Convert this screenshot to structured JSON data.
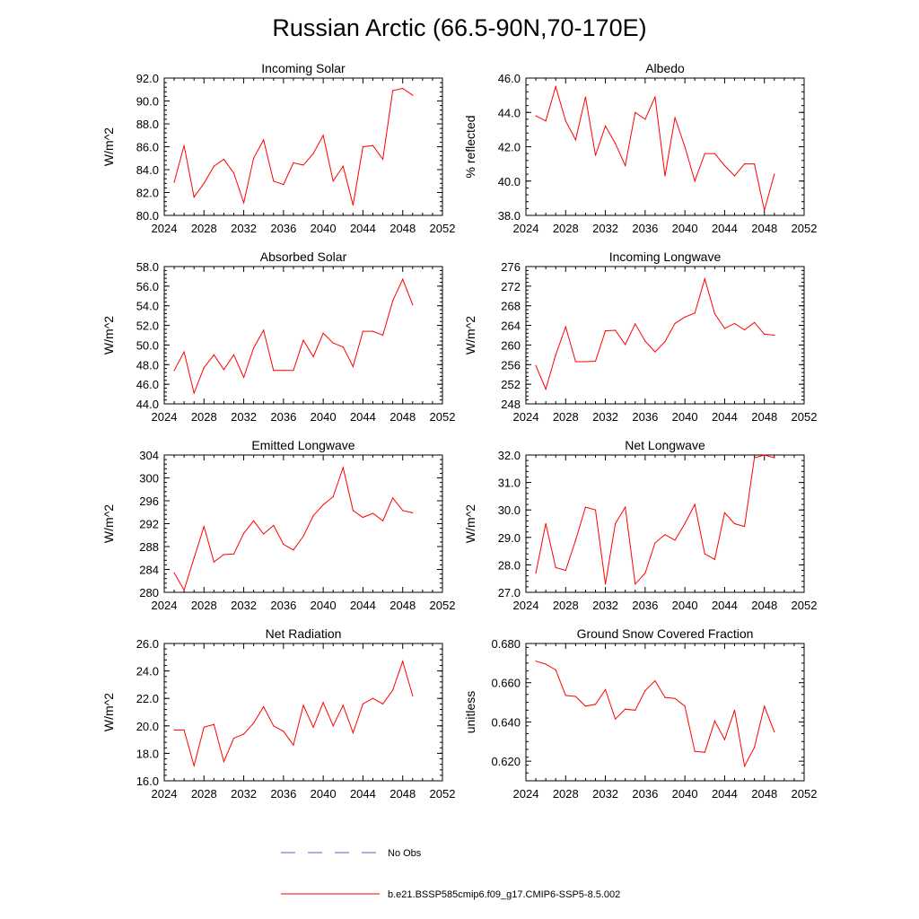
{
  "figure": {
    "title": "Russian Arctic (66.5-90N,70-170E)",
    "line_color": "#ff0000",
    "obs_color": "#5b5bbf"
  },
  "legend": {
    "obs_label": "No Obs",
    "model_label": "b.e21.BSSP585cmip6.f09_g17.CMIP6-SSP5-8.5.002"
  },
  "chart_data": [
    {
      "type": "line",
      "title": "Incoming Solar",
      "ylabel": "W/m^2",
      "xlim": [
        2024,
        2052
      ],
      "ylim": [
        80,
        92
      ],
      "xticks": [
        "2024",
        "2028",
        "2032",
        "2036",
        "2040",
        "2044",
        "2048",
        "2052"
      ],
      "yticks": [
        "80.0",
        "82.0",
        "84.0",
        "86.0",
        "88.0",
        "90.0",
        "92.0"
      ],
      "x": [
        2025,
        2026,
        2027,
        2028,
        2029,
        2030,
        2031,
        2032,
        2033,
        2034,
        2035,
        2036,
        2037,
        2038,
        2039,
        2040,
        2041,
        2042,
        2043,
        2044,
        2045,
        2046,
        2047,
        2048,
        2049
      ],
      "values": [
        82.9,
        86.1,
        81.6,
        82.8,
        84.3,
        84.9,
        83.7,
        81.1,
        85.0,
        86.6,
        83.0,
        82.7,
        84.6,
        84.4,
        85.4,
        87.0,
        83.0,
        84.3,
        80.9,
        86.0,
        86.1,
        84.9,
        90.9,
        91.1,
        90.5
      ]
    },
    {
      "type": "line",
      "title": "Albedo",
      "ylabel": "% reflected",
      "xlim": [
        2024,
        2052
      ],
      "ylim": [
        38,
        46
      ],
      "xticks": [
        "2024",
        "2028",
        "2032",
        "2036",
        "2040",
        "2044",
        "2048",
        "2052"
      ],
      "yticks": [
        "38.0",
        "40.0",
        "42.0",
        "44.0",
        "46.0"
      ],
      "x": [
        2025,
        2026,
        2027,
        2028,
        2029,
        2030,
        2031,
        2032,
        2033,
        2034,
        2035,
        2036,
        2037,
        2038,
        2039,
        2040,
        2041,
        2042,
        2043,
        2044,
        2045,
        2046,
        2047,
        2048,
        2049
      ],
      "values": [
        43.8,
        43.5,
        45.5,
        43.5,
        42.4,
        44.9,
        41.5,
        43.2,
        42.2,
        40.9,
        44.0,
        43.6,
        44.9,
        40.3,
        43.7,
        42.0,
        40.0,
        41.6,
        41.6,
        40.9,
        40.3,
        41.0,
        41.0,
        38.3,
        40.4
      ]
    },
    {
      "type": "line",
      "title": "Absorbed Solar",
      "ylabel": "W/m^2",
      "xlim": [
        2024,
        2052
      ],
      "ylim": [
        44,
        58
      ],
      "xticks": [
        "2024",
        "2028",
        "2032",
        "2036",
        "2040",
        "2044",
        "2048",
        "2052"
      ],
      "yticks": [
        "44.0",
        "46.0",
        "48.0",
        "50.0",
        "52.0",
        "54.0",
        "56.0",
        "58.0"
      ],
      "x": [
        2025,
        2026,
        2027,
        2028,
        2029,
        2030,
        2031,
        2032,
        2033,
        2034,
        2035,
        2036,
        2037,
        2038,
        2039,
        2040,
        2041,
        2042,
        2043,
        2044,
        2045,
        2046,
        2047,
        2048,
        2049
      ],
      "values": [
        47.4,
        49.3,
        45.1,
        47.7,
        49.0,
        47.5,
        49.0,
        46.7,
        49.7,
        51.5,
        47.4,
        47.4,
        47.4,
        50.5,
        48.8,
        51.2,
        50.2,
        49.8,
        47.8,
        51.4,
        51.4,
        51.0,
        54.5,
        56.7,
        54.1
      ]
    },
    {
      "type": "line",
      "title": "Incoming Longwave",
      "ylabel": "W/m^2",
      "xlim": [
        2024,
        2052
      ],
      "ylim": [
        248,
        276
      ],
      "xticks": [
        "2024",
        "2028",
        "2032",
        "2036",
        "2040",
        "2044",
        "2048",
        "2052"
      ],
      "yticks": [
        "248",
        "252",
        "256",
        "260",
        "264",
        "268",
        "272",
        "276"
      ],
      "x": [
        2025,
        2026,
        2027,
        2028,
        2029,
        2030,
        2031,
        2032,
        2033,
        2034,
        2035,
        2036,
        2037,
        2038,
        2039,
        2040,
        2041,
        2042,
        2043,
        2044,
        2045,
        2046,
        2047,
        2048,
        2049
      ],
      "values": [
        255.8,
        251.0,
        258.0,
        263.7,
        256.6,
        256.6,
        256.7,
        262.9,
        263.0,
        260.1,
        264.3,
        260.8,
        258.6,
        260.7,
        264.4,
        265.7,
        266.5,
        273.5,
        266.4,
        263.4,
        264.4,
        263.1,
        264.6,
        262.2,
        262.0
      ]
    },
    {
      "type": "line",
      "title": "Emitted Longwave",
      "ylabel": "W/m^2",
      "xlim": [
        2024,
        2052
      ],
      "ylim": [
        280,
        304
      ],
      "xticks": [
        "2024",
        "2028",
        "2032",
        "2036",
        "2040",
        "2044",
        "2048",
        "2052"
      ],
      "yticks": [
        "280",
        "284",
        "288",
        "292",
        "296",
        "300",
        "304"
      ],
      "x": [
        2025,
        2026,
        2027,
        2028,
        2029,
        2030,
        2031,
        2032,
        2033,
        2034,
        2035,
        2036,
        2037,
        2038,
        2039,
        2040,
        2041,
        2042,
        2043,
        2044,
        2045,
        2046,
        2047,
        2048,
        2049
      ],
      "values": [
        283.4,
        280.4,
        286.0,
        291.5,
        285.3,
        286.6,
        286.7,
        290.3,
        292.5,
        290.2,
        291.7,
        288.4,
        287.4,
        289.8,
        293.4,
        295.3,
        296.7,
        301.8,
        294.3,
        293.1,
        293.8,
        292.5,
        296.5,
        294.3,
        293.9
      ]
    },
    {
      "type": "line",
      "title": "Net Longwave",
      "ylabel": "W/m^2",
      "xlim": [
        2024,
        2052
      ],
      "ylim": [
        27,
        32
      ],
      "xticks": [
        "2024",
        "2028",
        "2032",
        "2036",
        "2040",
        "2044",
        "2048",
        "2052"
      ],
      "yticks": [
        "27.0",
        "28.0",
        "29.0",
        "30.0",
        "31.0",
        "32.0"
      ],
      "x": [
        2025,
        2026,
        2027,
        2028,
        2029,
        2030,
        2031,
        2032,
        2033,
        2034,
        2035,
        2036,
        2037,
        2038,
        2039,
        2040,
        2041,
        2042,
        2043,
        2044,
        2045,
        2046,
        2047,
        2048,
        2049
      ],
      "values": [
        27.7,
        29.5,
        27.9,
        27.8,
        28.9,
        30.1,
        30.0,
        27.3,
        29.5,
        30.1,
        27.3,
        27.7,
        28.8,
        29.1,
        28.9,
        29.5,
        30.2,
        28.4,
        28.2,
        29.9,
        29.5,
        29.4,
        31.9,
        32.0,
        31.9
      ]
    },
    {
      "type": "line",
      "title": "Net Radiation",
      "ylabel": "W/m^2",
      "xlim": [
        2024,
        2052
      ],
      "ylim": [
        16,
        26
      ],
      "xticks": [
        "2024",
        "2028",
        "2032",
        "2036",
        "2040",
        "2044",
        "2048",
        "2052"
      ],
      "yticks": [
        "16.0",
        "18.0",
        "20.0",
        "22.0",
        "24.0",
        "26.0"
      ],
      "x": [
        2025,
        2026,
        2027,
        2028,
        2029,
        2030,
        2031,
        2032,
        2033,
        2034,
        2035,
        2036,
        2037,
        2038,
        2039,
        2040,
        2041,
        2042,
        2043,
        2044,
        2045,
        2046,
        2047,
        2048,
        2049
      ],
      "values": [
        19.7,
        19.7,
        17.1,
        19.9,
        20.1,
        17.4,
        19.1,
        19.4,
        20.2,
        21.4,
        20.0,
        19.6,
        18.6,
        21.5,
        19.9,
        21.7,
        20.0,
        21.5,
        19.5,
        21.6,
        22.0,
        21.6,
        22.6,
        24.7,
        22.2
      ]
    },
    {
      "type": "line",
      "title": "Ground Snow Covered Fraction",
      "ylabel": "unitless",
      "xlim": [
        2024,
        2052
      ],
      "ylim": [
        0.61,
        0.68
      ],
      "xticks": [
        "2024",
        "2028",
        "2032",
        "2036",
        "2040",
        "2044",
        "2048",
        "2052"
      ],
      "yticks": [
        "0.620",
        "0.640",
        "0.660",
        "0.680"
      ],
      "ytick_values": [
        0.62,
        0.64,
        0.66,
        0.68
      ],
      "x": [
        2025,
        2026,
        2027,
        2028,
        2029,
        2030,
        2031,
        2032,
        2033,
        2034,
        2035,
        2036,
        2037,
        2038,
        2039,
        2040,
        2041,
        2042,
        2043,
        2044,
        2045,
        2046,
        2047,
        2048,
        2049
      ],
      "values": [
        0.671,
        0.6695,
        0.6665,
        0.6535,
        0.653,
        0.648,
        0.649,
        0.6565,
        0.6415,
        0.6465,
        0.646,
        0.656,
        0.661,
        0.6525,
        0.652,
        0.648,
        0.625,
        0.6245,
        0.6405,
        0.631,
        0.646,
        0.6175,
        0.627,
        0.648,
        0.635
      ]
    }
  ]
}
